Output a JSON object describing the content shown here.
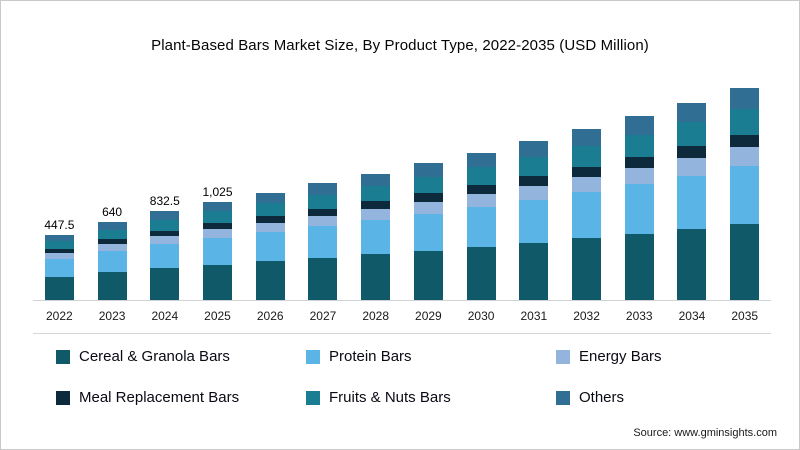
{
  "page": {
    "title": "Plant-Based Bars Market Size, By Product Type, 2022-2035 (USD Million)",
    "source": "Source: www.gminsights.com"
  },
  "chart_data": {
    "type": "bar",
    "stacked": true,
    "title": "Plant-Based Bars Market Size, By Product Type, 2022-2035 (USD Million)",
    "unit": "USD Million",
    "grid": false,
    "legend_position": "bottom",
    "categories": [
      "2022",
      "2023",
      "2024",
      "2025",
      "2026",
      "2027",
      "2028",
      "2029",
      "2030",
      "2031",
      "2032",
      "2033",
      "2034",
      "2035"
    ],
    "totals_estimated": [
      447.5,
      640,
      832.5,
      1025,
      1220,
      1440,
      1690,
      1975,
      2300,
      2670,
      3090,
      3570,
      4120,
      4750
    ],
    "total_labels": [
      "447.5",
      "640",
      "832.5",
      "1,025",
      "",
      "",
      "",
      "",
      "",
      "",
      "",
      "",
      "",
      ""
    ],
    "series": [
      {
        "name": "Cereal & Granola Bars",
        "color": "#0f5968",
        "values": [
          161.0,
          230.4,
          299.7,
          369.0,
          439.2,
          518.4,
          608.4,
          711.0,
          828.0,
          961.2,
          1112.4,
          1285.2,
          1483.2,
          1710.0
        ]
      },
      {
        "name": "Protein Bars",
        "color": "#5ab4e5",
        "values": [
          120.8,
          172.8,
          224.8,
          276.7,
          329.4,
          388.8,
          456.3,
          533.3,
          621.0,
          720.9,
          834.3,
          963.9,
          1112.4,
          1282.5
        ]
      },
      {
        "name": "Energy Bars",
        "color": "#93b5dd",
        "values": [
          40.3,
          57.6,
          74.8,
          92.3,
          109.8,
          129.6,
          152.1,
          177.8,
          207.0,
          240.3,
          278.1,
          321.3,
          370.8,
          427.5
        ]
      },
      {
        "name": "Meal Replacement Bars",
        "color": "#0d2a3d",
        "values": [
          26.9,
          38.4,
          50.0,
          61.5,
          73.2,
          86.4,
          101.4,
          118.5,
          138.0,
          160.2,
          185.4,
          214.2,
          247.2,
          285.0
        ]
      },
      {
        "name": "Fruits & Nuts Bars",
        "color": "#1a7d92",
        "values": [
          53.7,
          76.8,
          99.9,
          123.0,
          146.4,
          172.8,
          202.8,
          237.0,
          276.0,
          320.4,
          370.8,
          428.4,
          494.4,
          570.0
        ]
      },
      {
        "name": "Others",
        "color": "#316e94",
        "values": [
          44.8,
          64.0,
          83.3,
          102.5,
          122.0,
          144.0,
          169.0,
          197.5,
          230.0,
          267.0,
          309.0,
          357.0,
          412.0,
          475.0
        ]
      }
    ]
  },
  "legend": {
    "items": [
      "Cereal & Granola Bars",
      "Protein Bars",
      "Energy Bars",
      "Meal Replacement Bars",
      "Fruits & Nuts Bars",
      "Others"
    ]
  }
}
